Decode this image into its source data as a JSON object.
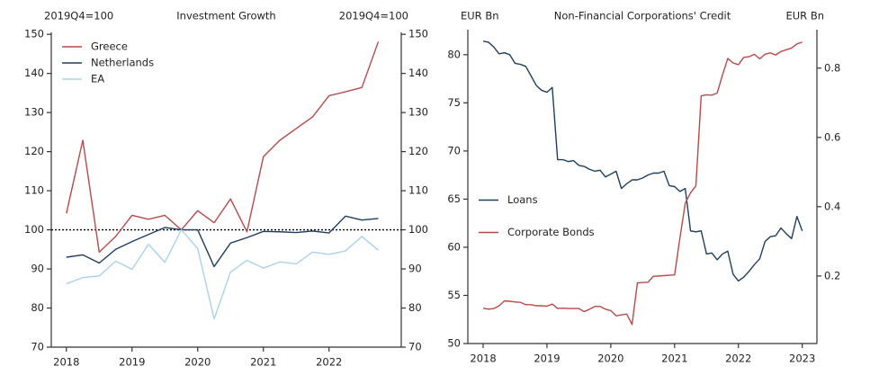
{
  "chart_data": [
    {
      "type": "line",
      "title": "Investment Growth",
      "ylabel": "2019Q4=100",
      "y2label": "2019Q4=100",
      "x": [
        2018,
        2018.25,
        2018.5,
        2018.75,
        2019,
        2019.25,
        2019.5,
        2019.75,
        2020,
        2020.25,
        2020.5,
        2020.75,
        2021,
        2021.25,
        2021.5,
        2021.75,
        2022,
        2022.25,
        2022.5,
        2022.75
      ],
      "series": [
        {
          "name": "Greece",
          "color": "#b84a4a",
          "values": [
            104.2,
            122.9,
            94.3,
            98.3,
            103.7,
            102.7,
            103.7,
            100,
            104.9,
            101.8,
            107.9,
            99.5,
            118.7,
            122.9,
            125.9,
            128.9,
            134.3,
            135.3,
            136.4,
            148.1
          ]
        },
        {
          "name": "Netherlands",
          "color": "#1f3f5f",
          "values": [
            93.0,
            93.6,
            91.5,
            95.0,
            97.0,
            98.8,
            100.6,
            100,
            100,
            90.6,
            96.6,
            98.0,
            99.6,
            99.5,
            99.3,
            99.7,
            99.2,
            103.5,
            102.5,
            102.9
          ]
        },
        {
          "name": "EA",
          "color": "#a9d3ea",
          "values": [
            86.2,
            87.8,
            88.2,
            92.0,
            89.9,
            96.3,
            91.7,
            100,
            95.2,
            77.2,
            89.2,
            92.2,
            90.2,
            91.8,
            91.3,
            94.3,
            93.7,
            94.6,
            98.3,
            94.8
          ]
        }
      ],
      "xlim": [
        2017.77,
        2023.1
      ],
      "xticks": [
        2018,
        2019,
        2020,
        2021,
        2022
      ],
      "ylim": [
        70,
        150.5
      ],
      "yticks": [
        70,
        80,
        90,
        100,
        110,
        120,
        130,
        140,
        150
      ],
      "y2lim": [
        70,
        150.5
      ],
      "y2ticks": [
        70,
        80,
        90,
        100,
        110,
        120,
        130,
        140,
        150
      ],
      "hline": 100,
      "legend": "upper left"
    },
    {
      "type": "line",
      "title": "Non-Financial Corporations' Credit",
      "ylabel": "EUR Bn",
      "y2label": "EUR Bn",
      "x": [
        2018,
        2018.0833,
        2018.1667,
        2018.25,
        2018.3333,
        2018.4167,
        2018.5,
        2018.5833,
        2018.6667,
        2018.75,
        2018.8333,
        2018.9167,
        2019,
        2019.0833,
        2019.1667,
        2019.25,
        2019.3333,
        2019.4167,
        2019.5,
        2019.5833,
        2019.6667,
        2019.75,
        2019.8333,
        2019.9167,
        2020,
        2020.0833,
        2020.1667,
        2020.25,
        2020.3333,
        2020.4167,
        2020.5,
        2020.5833,
        2020.6667,
        2020.75,
        2020.8333,
        2020.9167,
        2021,
        2021.0833,
        2021.1667,
        2021.25,
        2021.3333,
        2021.4167,
        2021.5,
        2021.5833,
        2021.6667,
        2021.75,
        2021.8333,
        2021.9167,
        2022,
        2022.0833,
        2022.1667,
        2022.25,
        2022.3333,
        2022.4167,
        2022.5,
        2022.5833,
        2022.6667,
        2022.75,
        2022.8333,
        2022.9167,
        2023
      ],
      "series": [
        {
          "name": "Loans",
          "color": "#1f3f5f",
          "values": [
            81.4,
            81.3,
            80.8,
            80.1,
            80.2,
            80.0,
            79.1,
            79.0,
            78.8,
            77.8,
            76.8,
            76.3,
            76.1,
            76.6,
            69.1,
            69.1,
            68.9,
            69.0,
            68.5,
            68.4,
            68.1,
            67.9,
            68.0,
            67.3,
            67.6,
            67.9,
            66.1,
            66.6,
            67.0,
            67.0,
            67.2,
            67.5,
            67.7,
            67.7,
            67.9,
            66.4,
            66.3,
            65.8,
            66.1,
            61.7,
            61.6,
            61.7,
            59.3,
            59.4,
            58.7,
            59.3,
            59.6,
            57.2,
            56.5,
            56.9,
            57.5,
            58.2,
            58.8,
            60.6,
            61.1,
            61.2,
            62.0,
            61.4,
            60.9,
            63.2,
            61.7
          ]
        },
        {
          "name": "Corporate Bonds",
          "color": "#b84a4a",
          "axis": "y2",
          "values": [
            0.107,
            0.104,
            0.106,
            0.114,
            0.128,
            0.127,
            0.125,
            0.124,
            0.117,
            0.117,
            0.114,
            0.114,
            0.113,
            0.119,
            0.106,
            0.107,
            0.106,
            0.106,
            0.106,
            0.097,
            0.104,
            0.112,
            0.112,
            0.104,
            0.1,
            0.085,
            0.088,
            0.09,
            0.06,
            0.18,
            0.181,
            0.182,
            0.199,
            0.2,
            0.201,
            0.202,
            0.203,
            0.31,
            0.41,
            0.44,
            0.46,
            0.72,
            0.723,
            0.722,
            0.728,
            0.78,
            0.828,
            0.815,
            0.81,
            0.831,
            0.833,
            0.84,
            0.827,
            0.84,
            0.844,
            0.838,
            0.848,
            0.853,
            0.858,
            0.87,
            0.875
          ]
        }
      ],
      "xlim": [
        2017.76,
        2023.23
      ],
      "xticks": [
        2018,
        2019,
        2020,
        2021,
        2022,
        2023
      ],
      "ylim": [
        50,
        82.6
      ],
      "yticks": [
        50,
        55,
        60,
        65,
        70,
        75,
        80
      ],
      "y2lim": [
        0.005,
        0.911
      ],
      "y2ticks": [
        0.2,
        0.4,
        0.6,
        0.8
      ],
      "legend": "center left"
    }
  ]
}
